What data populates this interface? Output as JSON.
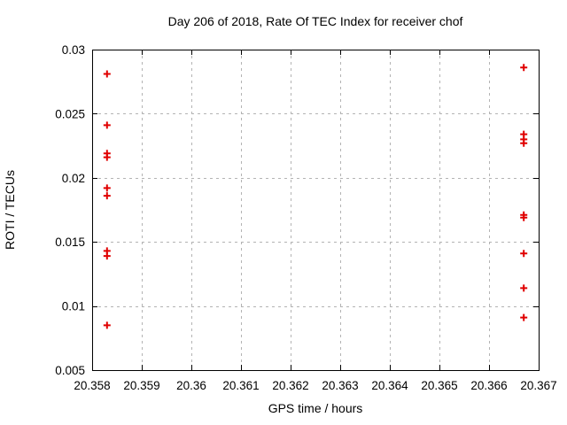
{
  "colors": {
    "background": "#ffffff",
    "axis": "#000000",
    "grid": "#b3b3b3",
    "marker": "#e00000"
  },
  "chart_data": {
    "type": "scatter",
    "title": "Day 206 of 2018, Rate Of TEC Index for receiver chof",
    "xlabel": "GPS time / hours",
    "ylabel": "ROTI / TECUs",
    "xlim": [
      20.358,
      20.367
    ],
    "ylim": [
      0.005,
      0.03
    ],
    "xticks": [
      20.358,
      20.359,
      20.36,
      20.361,
      20.362,
      20.363,
      20.364,
      20.365,
      20.366,
      20.367
    ],
    "xtick_labels": [
      "20.358",
      "20.359",
      "20.36",
      "20.361",
      "20.362",
      "20.363",
      "20.364",
      "20.365",
      "20.366",
      "20.367"
    ],
    "yticks": [
      0.005,
      0.01,
      0.015,
      0.02,
      0.025,
      0.03
    ],
    "ytick_labels": [
      "0.005",
      "0.01",
      "0.015",
      "0.02",
      "0.025",
      "0.03"
    ],
    "grid": true,
    "legend_position": "none",
    "marker_style": "plus",
    "series": [
      {
        "name": "ROTI",
        "color": "#e00000",
        "points": [
          [
            20.3583,
            0.0281
          ],
          [
            20.3583,
            0.0241
          ],
          [
            20.3583,
            0.0219
          ],
          [
            20.3583,
            0.0216
          ],
          [
            20.3583,
            0.0192
          ],
          [
            20.3583,
            0.0186
          ],
          [
            20.3583,
            0.0143
          ],
          [
            20.3583,
            0.0139
          ],
          [
            20.3583,
            0.0085
          ],
          [
            20.3667,
            0.0286
          ],
          [
            20.3667,
            0.0234
          ],
          [
            20.3667,
            0.023
          ],
          [
            20.3667,
            0.0227
          ],
          [
            20.3667,
            0.0171
          ],
          [
            20.3667,
            0.0169
          ],
          [
            20.3667,
            0.0141
          ],
          [
            20.3667,
            0.0114
          ],
          [
            20.3667,
            0.0091
          ]
        ]
      }
    ]
  }
}
